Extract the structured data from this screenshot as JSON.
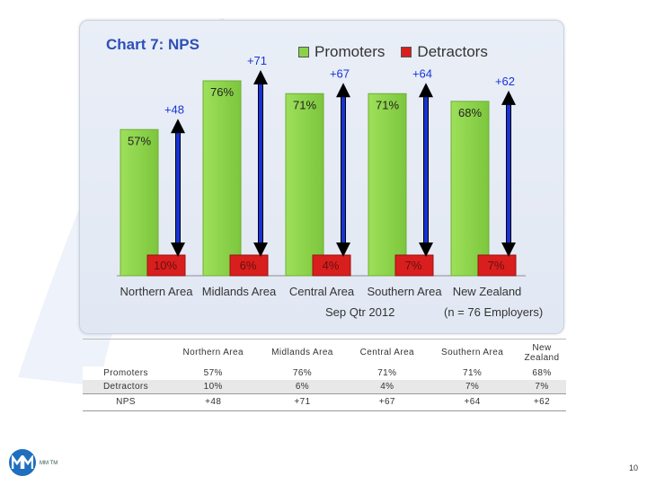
{
  "chart_data": {
    "type": "bar",
    "title": "Chart 7: NPS",
    "categories": [
      "Northern Area",
      "Midlands Area",
      "Central Area",
      "Southern Area",
      "New Zealand"
    ],
    "series": [
      {
        "name": "Promoters",
        "values": [
          57,
          76,
          71,
          71,
          68
        ],
        "labels": [
          "57%",
          "76%",
          "71%",
          "71%",
          "68%"
        ],
        "color": "#8ad24a"
      },
      {
        "name": "Detractors",
        "values": [
          10,
          6,
          4,
          7,
          7
        ],
        "labels": [
          "10%",
          "6%",
          "4%",
          "7%",
          "7%"
        ],
        "color": "#d91e1e"
      }
    ],
    "nps": [
      48,
      71,
      67,
      64,
      62
    ],
    "nps_labels": [
      "+48",
      "+71",
      "+67",
      "+64",
      "+62"
    ],
    "nps_arrow_color": "#1733d6",
    "ylim": [
      0,
      100
    ],
    "legend": "top",
    "grid": false,
    "footer_left": "Sep Qtr 2012",
    "footer_right": "(n = 76 Employers)"
  },
  "table": {
    "headers": [
      "",
      "Northern Area",
      "Midlands Area",
      "Central Area",
      "Southern Area",
      "New Zealand"
    ],
    "rows": [
      [
        "Promoters",
        "57%",
        "76%",
        "71%",
        "71%",
        "68%"
      ],
      [
        "Detractors",
        "10%",
        "6%",
        "4%",
        "7%",
        "7%"
      ],
      [
        "NPS",
        "+48",
        "+71",
        "+67",
        "+64",
        "+62"
      ]
    ]
  },
  "logo": {
    "mark": "M",
    "text": "MM TM"
  },
  "page_number": "10"
}
